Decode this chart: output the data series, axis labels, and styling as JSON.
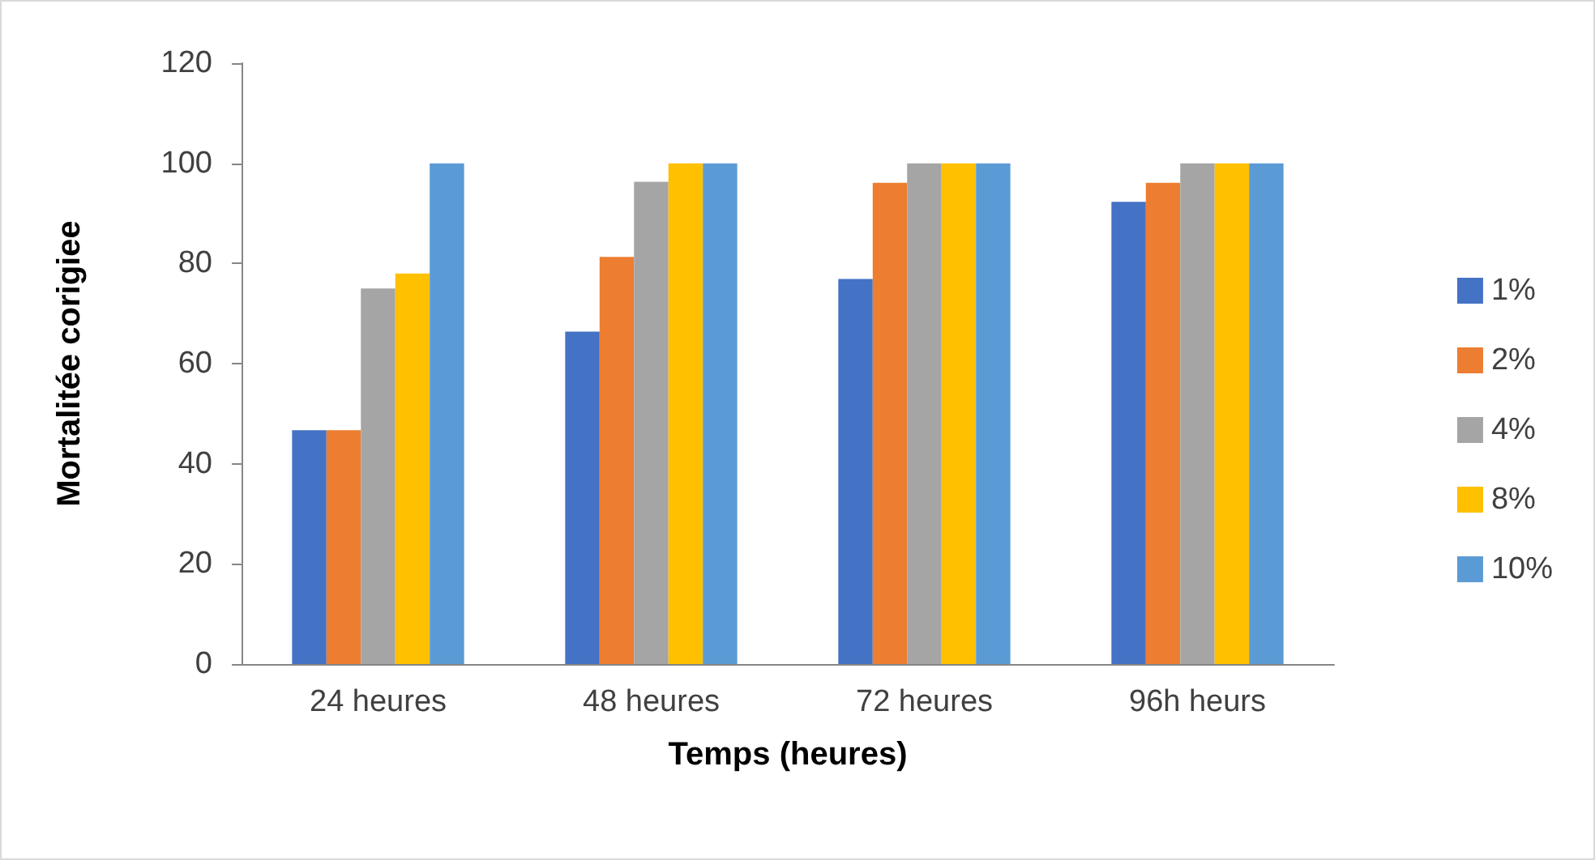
{
  "chart_data": {
    "type": "bar",
    "xlabel": "Temps (heures)",
    "ylabel": "Mortalitée corigiee",
    "categories": [
      "24 heures",
      "48 heures",
      "72 heures",
      "96h heurs"
    ],
    "series": [
      {
        "name": "1%",
        "color": "#4472c4",
        "values": [
          46.7,
          66.4,
          76.9,
          92.3
        ]
      },
      {
        "name": "2%",
        "color": "#ed7d31",
        "values": [
          46.7,
          81.3,
          96.1,
          96.1
        ]
      },
      {
        "name": "4%",
        "color": "#a5a5a5",
        "values": [
          75,
          96.3,
          100,
          100
        ]
      },
      {
        "name": "8%",
        "color": "#ffc000",
        "values": [
          78,
          100,
          100,
          100
        ]
      },
      {
        "name": "10%",
        "color": "#5b9bd5",
        "values": [
          100,
          100,
          100,
          100
        ]
      }
    ],
    "ylim": [
      0,
      120
    ],
    "yticks": [
      0,
      20,
      40,
      60,
      80,
      100,
      120
    ],
    "grid": false,
    "legend": "right"
  }
}
